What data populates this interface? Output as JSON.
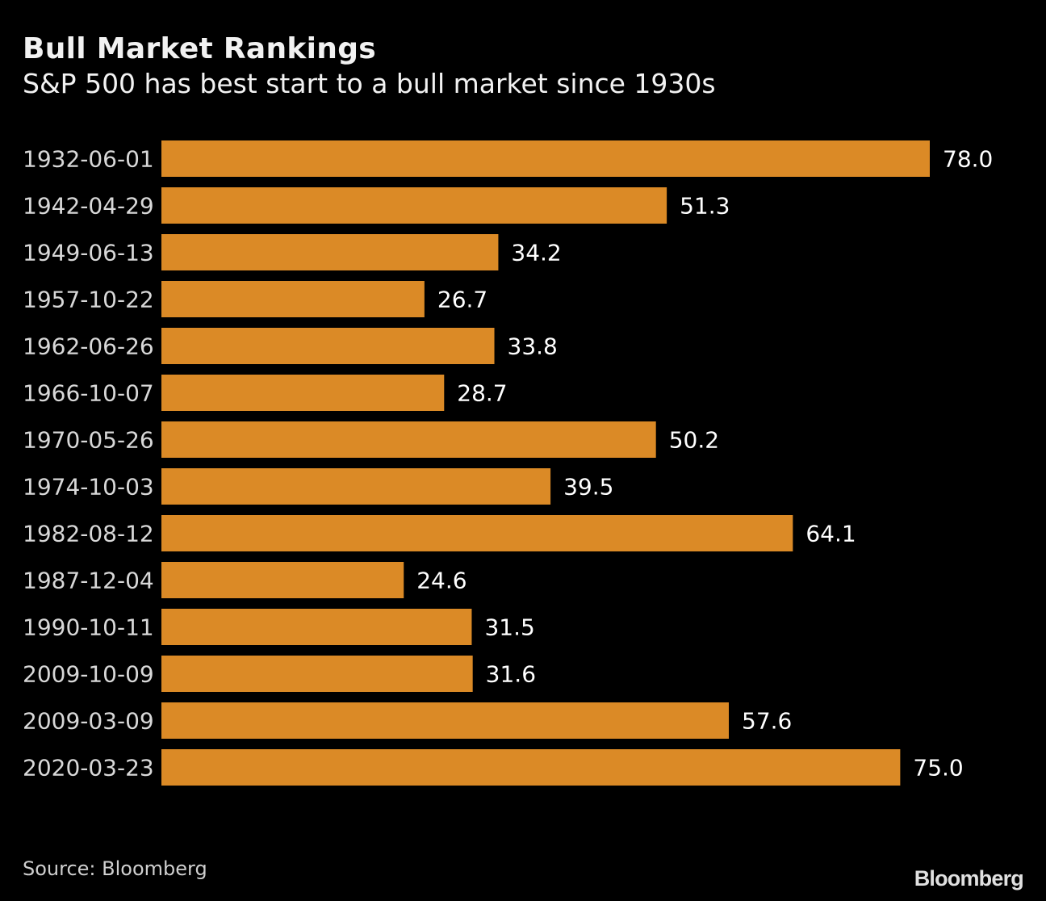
{
  "chart_data": {
    "type": "bar",
    "orientation": "horizontal",
    "title": "Bull Market Rankings",
    "subtitle": "S&P 500 has best start to a bull market since 1930s",
    "categories": [
      "1932-06-01",
      "1942-04-29",
      "1949-06-13",
      "1957-10-22",
      "1962-06-26",
      "1966-10-07",
      "1970-05-26",
      "1974-10-03",
      "1982-08-12",
      "1987-12-04",
      "1990-10-11",
      "2009-10-09",
      "2009-03-09",
      "2020-03-23"
    ],
    "values": [
      78.0,
      51.3,
      34.2,
      26.7,
      33.8,
      28.7,
      50.2,
      39.5,
      64.1,
      24.6,
      31.5,
      31.6,
      57.6,
      75.0
    ],
    "value_labels": [
      "78.0",
      "51.3",
      "34.2",
      "26.7",
      "33.8",
      "28.7",
      "50.2",
      "39.5",
      "64.1",
      "24.6",
      "31.5",
      "31.6",
      "57.6",
      "75.0"
    ],
    "xlim": [
      0,
      78
    ],
    "grid": false,
    "bar_color": "#DB8A26",
    "xlabel": "",
    "ylabel": ""
  },
  "footer": {
    "source": "Source: Bloomberg",
    "logo": "Bloomberg"
  }
}
